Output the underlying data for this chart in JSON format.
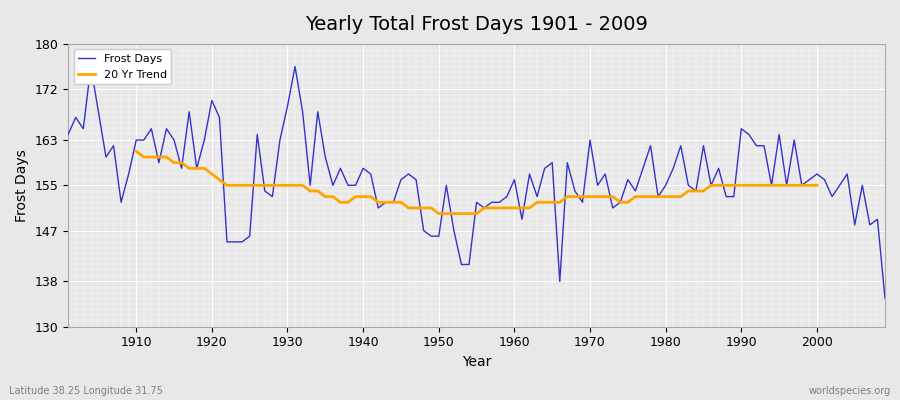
{
  "title": "Yearly Total Frost Days 1901 - 2009",
  "xlabel": "Year",
  "ylabel": "Frost Days",
  "lat_lon_label": "Latitude 38.25 Longitude 31.75",
  "watermark": "worldspecies.org",
  "line_color": "#3333cc",
  "trend_color": "#ffa500",
  "bg_color": "#e8e8e8",
  "plot_bg_color": "#e8e8e8",
  "ylim": [
    130,
    180
  ],
  "yticks": [
    130,
    138,
    147,
    155,
    163,
    172,
    180
  ],
  "years": [
    1901,
    1902,
    1903,
    1904,
    1905,
    1906,
    1907,
    1908,
    1909,
    1910,
    1911,
    1912,
    1913,
    1914,
    1915,
    1916,
    1917,
    1918,
    1919,
    1920,
    1921,
    1922,
    1923,
    1924,
    1925,
    1926,
    1927,
    1928,
    1929,
    1930,
    1931,
    1932,
    1933,
    1934,
    1935,
    1936,
    1937,
    1938,
    1939,
    1940,
    1941,
    1942,
    1943,
    1944,
    1945,
    1946,
    1947,
    1948,
    1949,
    1950,
    1951,
    1952,
    1953,
    1954,
    1955,
    1956,
    1957,
    1958,
    1959,
    1960,
    1961,
    1962,
    1963,
    1964,
    1965,
    1966,
    1967,
    1968,
    1969,
    1970,
    1971,
    1972,
    1973,
    1974,
    1975,
    1976,
    1977,
    1978,
    1979,
    1980,
    1981,
    1982,
    1983,
    1984,
    1985,
    1986,
    1987,
    1988,
    1989,
    1990,
    1991,
    1992,
    1993,
    1994,
    1995,
    1996,
    1997,
    1998,
    1999,
    2000,
    2001,
    2002,
    2003,
    2004,
    2005,
    2006,
    2007,
    2008,
    2009
  ],
  "frost_days": [
    164,
    167,
    165,
    176,
    168,
    160,
    162,
    152,
    157,
    163,
    163,
    165,
    159,
    165,
    163,
    158,
    168,
    158,
    163,
    170,
    167,
    145,
    145,
    145,
    146,
    164,
    154,
    153,
    163,
    169,
    176,
    168,
    155,
    168,
    160,
    155,
    158,
    155,
    155,
    158,
    157,
    151,
    152,
    152,
    156,
    157,
    156,
    147,
    146,
    146,
    155,
    147,
    141,
    141,
    152,
    151,
    152,
    152,
    153,
    156,
    149,
    157,
    153,
    158,
    159,
    138,
    159,
    154,
    152,
    163,
    155,
    157,
    151,
    152,
    156,
    154,
    158,
    162,
    153,
    155,
    158,
    162,
    155,
    154,
    162,
    155,
    158,
    153,
    153,
    165,
    164,
    162,
    162,
    155,
    164,
    155,
    163,
    155,
    156,
    157,
    156,
    153,
    155,
    157,
    148,
    155,
    148,
    149,
    135
  ],
  "trend_years": [
    1910,
    1911,
    1912,
    1913,
    1914,
    1915,
    1916,
    1917,
    1918,
    1919,
    1920,
    1921,
    1922,
    1923,
    1924,
    1925,
    1926,
    1927,
    1928,
    1929,
    1930,
    1931,
    1932,
    1933,
    1934,
    1935,
    1936,
    1937,
    1938,
    1939,
    1940,
    1941,
    1942,
    1943,
    1944,
    1945,
    1946,
    1947,
    1948,
    1949,
    1950,
    1951,
    1952,
    1953,
    1954,
    1955,
    1956,
    1957,
    1958,
    1959,
    1960,
    1961,
    1962,
    1963,
    1964,
    1965,
    1966,
    1967,
    1968,
    1969,
    1970,
    1971,
    1972,
    1973,
    1974,
    1975,
    1976,
    1977,
    1978,
    1979,
    1980,
    1981,
    1982,
    1983,
    1984,
    1985,
    1986,
    1987,
    1988,
    1989,
    1990,
    1991,
    1992,
    1993,
    1994,
    1995,
    1996,
    1997,
    1998,
    1999,
    2000
  ],
  "trend_values": [
    161,
    160,
    160,
    160,
    160,
    159,
    159,
    158,
    158,
    158,
    157,
    156,
    155,
    155,
    155,
    155,
    155,
    155,
    155,
    155,
    155,
    155,
    155,
    154,
    154,
    153,
    153,
    152,
    152,
    153,
    153,
    153,
    152,
    152,
    152,
    152,
    151,
    151,
    151,
    151,
    150,
    150,
    150,
    150,
    150,
    150,
    151,
    151,
    151,
    151,
    151,
    151,
    151,
    152,
    152,
    152,
    152,
    153,
    153,
    153,
    153,
    153,
    153,
    153,
    152,
    152,
    153,
    153,
    153,
    153,
    153,
    153,
    153,
    154,
    154,
    154,
    155,
    155,
    155,
    155,
    155,
    155,
    155,
    155,
    155,
    155,
    155,
    155,
    155,
    155,
    155
  ]
}
